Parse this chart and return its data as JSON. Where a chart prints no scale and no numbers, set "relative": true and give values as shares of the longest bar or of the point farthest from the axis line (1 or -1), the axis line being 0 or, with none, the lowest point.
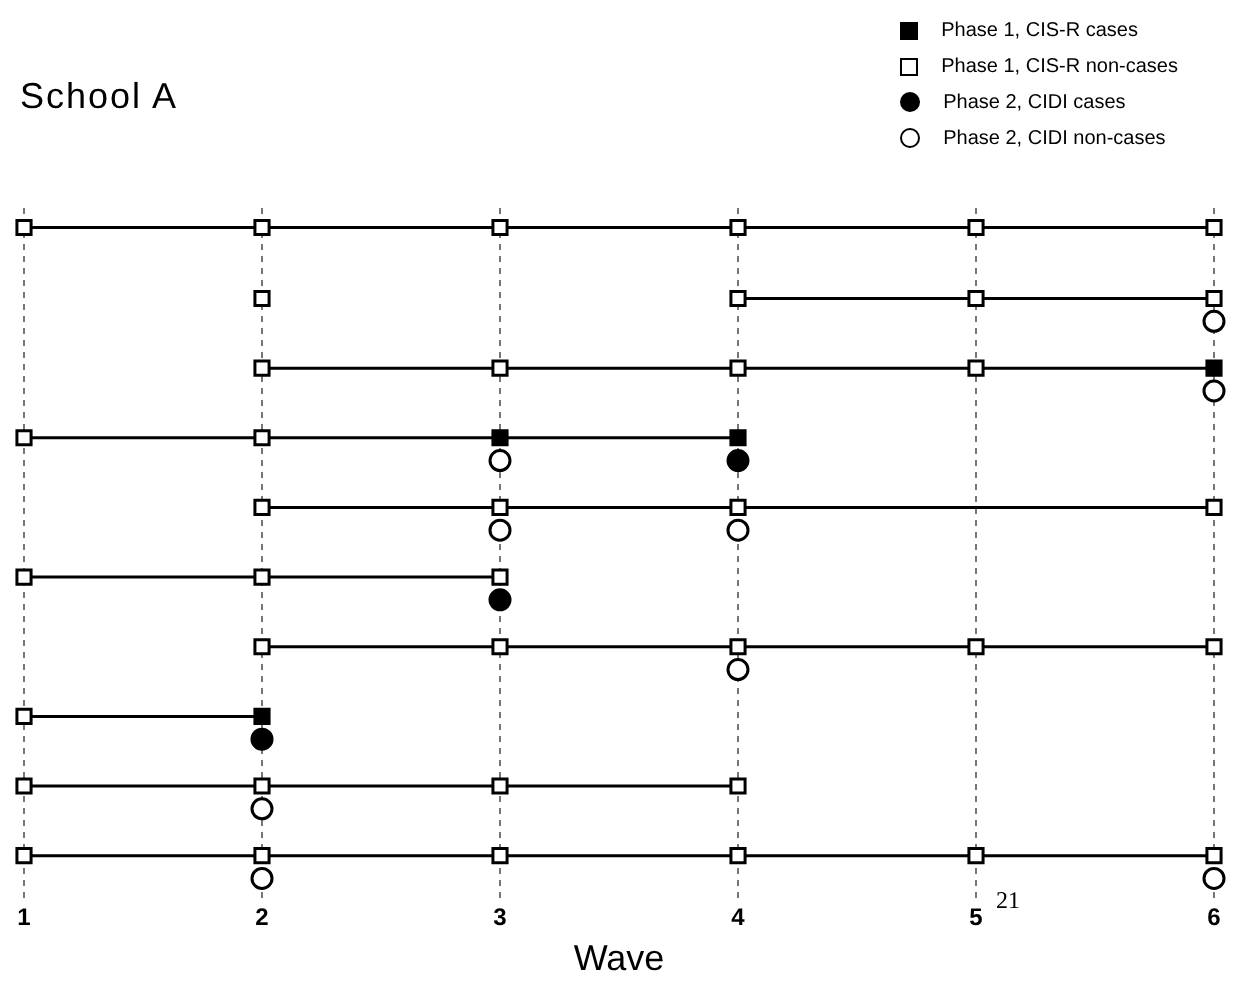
{
  "chart_data": {
    "type": "scatter",
    "title": "School A",
    "xlabel": "Wave",
    "relative": true,
    "xlim": [
      1,
      6
    ],
    "xticks": [
      1,
      2,
      3,
      4,
      5,
      6
    ],
    "grid": "x",
    "legend": "top right",
    "tick_labels": "x",
    "annotations": [
      "21"
    ],
    "series": [
      {
        "type": "line",
        "color": "#000000",
        "marker": "none",
        "x": [
          1,
          6
        ],
        "values": [
          1,
          1
        ]
      },
      {
        "type": "line",
        "color": "#000000",
        "marker": "none",
        "x": [
          4,
          6
        ],
        "values": [
          0.891,
          0.891
        ]
      },
      {
        "type": "line",
        "color": "#000000",
        "marker": "none",
        "x": [
          2,
          6
        ],
        "values": [
          0.784,
          0.784
        ]
      },
      {
        "type": "line",
        "color": "#000000",
        "marker": "none",
        "x": [
          1,
          4
        ],
        "values": [
          0.677,
          0.677
        ]
      },
      {
        "type": "line",
        "color": "#000000",
        "marker": "none",
        "x": [
          2,
          6
        ],
        "values": [
          0.57,
          0.57
        ]
      },
      {
        "type": "line",
        "color": "#000000",
        "marker": "none",
        "x": [
          1,
          3
        ],
        "values": [
          0.463,
          0.463
        ]
      },
      {
        "type": "line",
        "color": "#000000",
        "marker": "none",
        "x": [
          2,
          6
        ],
        "values": [
          0.356,
          0.356
        ]
      },
      {
        "type": "line",
        "color": "#000000",
        "marker": "none",
        "x": [
          1,
          2
        ],
        "values": [
          0.249,
          0.249
        ]
      },
      {
        "type": "line",
        "color": "#000000",
        "marker": "none",
        "x": [
          1,
          4
        ],
        "values": [
          0.142,
          0.142
        ]
      },
      {
        "type": "line",
        "color": "#000000",
        "marker": "none",
        "x": [
          1,
          6
        ],
        "values": [
          0.035,
          0.035
        ]
      },
      {
        "name": "Phase 1, CIS-R cases",
        "color": "#000000",
        "marker": "square",
        "x": [
          6,
          3,
          4,
          2
        ],
        "values": [
          0.784,
          0.677,
          0.677,
          0.249
        ]
      },
      {
        "name": "Phase 1, CIS-R non-cases",
        "color": "#ffffff",
        "marker": "square",
        "x": [
          1,
          2,
          3,
          4,
          5,
          6,
          2,
          4,
          5,
          6,
          2,
          3,
          4,
          5,
          1,
          2,
          2,
          3,
          4,
          6,
          1,
          2,
          3,
          2,
          3,
          4,
          5,
          6,
          1,
          1,
          2,
          3,
          4,
          1,
          2,
          3,
          4,
          5,
          6
        ],
        "values": [
          1,
          1,
          1,
          1,
          1,
          1,
          0.891,
          0.891,
          0.891,
          0.891,
          0.784,
          0.784,
          0.784,
          0.784,
          0.677,
          0.677,
          0.57,
          0.57,
          0.57,
          0.57,
          0.463,
          0.463,
          0.463,
          0.356,
          0.356,
          0.356,
          0.356,
          0.356,
          0.249,
          0.142,
          0.142,
          0.142,
          0.142,
          0.035,
          0.035,
          0.035,
          0.035,
          0.035,
          0.035
        ]
      },
      {
        "name": "Phase 2, CIDI cases",
        "color": "#000000",
        "marker": "circle",
        "x": [
          4,
          3,
          2
        ],
        "values": [
          0.642,
          0.428,
          0.214
        ]
      },
      {
        "name": "Phase 2, CIDI non-cases",
        "color": "#ffffff",
        "marker": "circle",
        "x": [
          6,
          6,
          3,
          3,
          4,
          4,
          2,
          2,
          6
        ],
        "values": [
          0.856,
          0.749,
          0.642,
          0.535,
          0.535,
          0.321,
          0.107,
          0,
          0
        ]
      }
    ]
  }
}
